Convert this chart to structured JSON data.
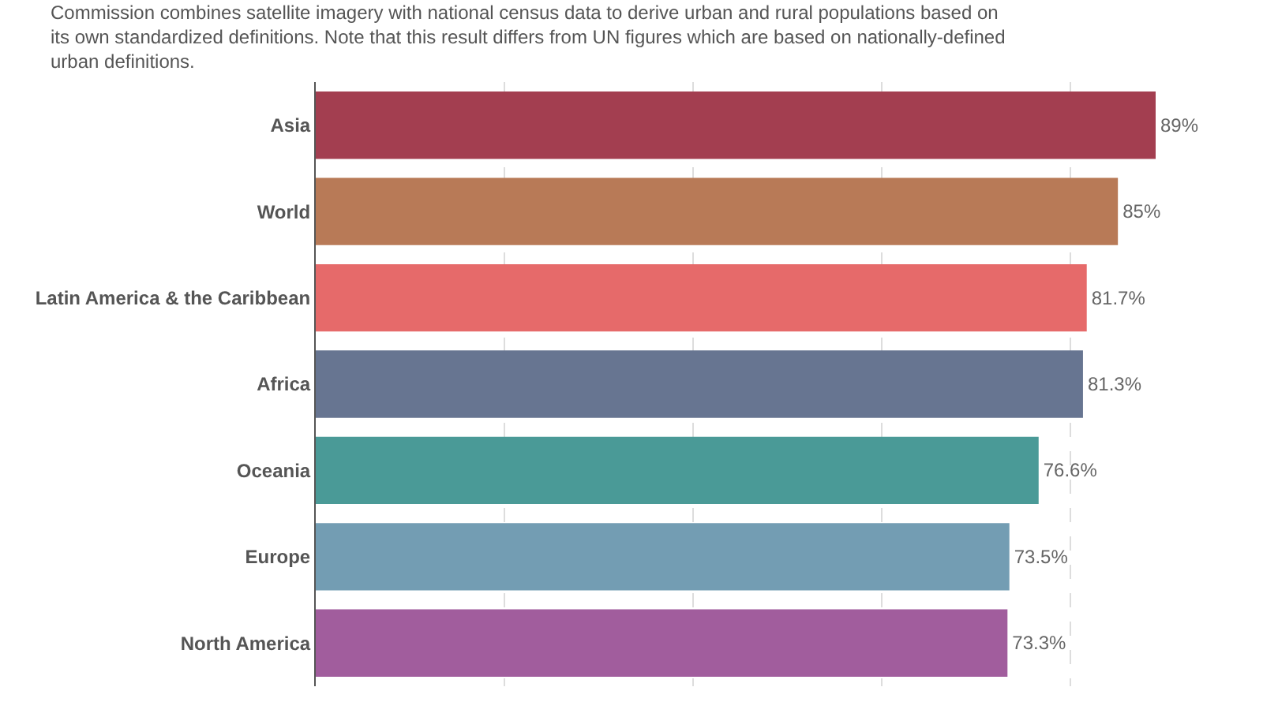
{
  "chart_data": {
    "type": "bar",
    "orientation": "horizontal",
    "subtitle": "Commission combines satellite imagery with national census data to derive urban and rural populations based on\nits own standardized definitions. Note that this result differs from UN figures which are based on nationally-defined\nurban definitions.",
    "categories": [
      "Asia",
      "World",
      "Latin America & the Caribbean",
      "Africa",
      "Oceania",
      "Europe",
      "North America"
    ],
    "values": [
      89,
      85,
      81.7,
      81.3,
      76.6,
      73.5,
      73.3
    ],
    "value_labels": [
      "89%",
      "85%",
      "81.7%",
      "81.3%",
      "76.6%",
      "73.5%",
      "73.3%"
    ],
    "colors": [
      "#a33e50",
      "#b87a57",
      "#e66a6a",
      "#677591",
      "#4a9a97",
      "#739db3",
      "#a15d9d"
    ],
    "xticks": [
      {
        "value": 0,
        "label": null
      },
      {
        "value": 20,
        "label": null
      },
      {
        "value": 40,
        "label": null
      },
      {
        "value": 60,
        "label": null
      },
      {
        "value": 80,
        "label": null
      }
    ],
    "grid": "x",
    "tick_labels": "y",
    "legend": false
  }
}
